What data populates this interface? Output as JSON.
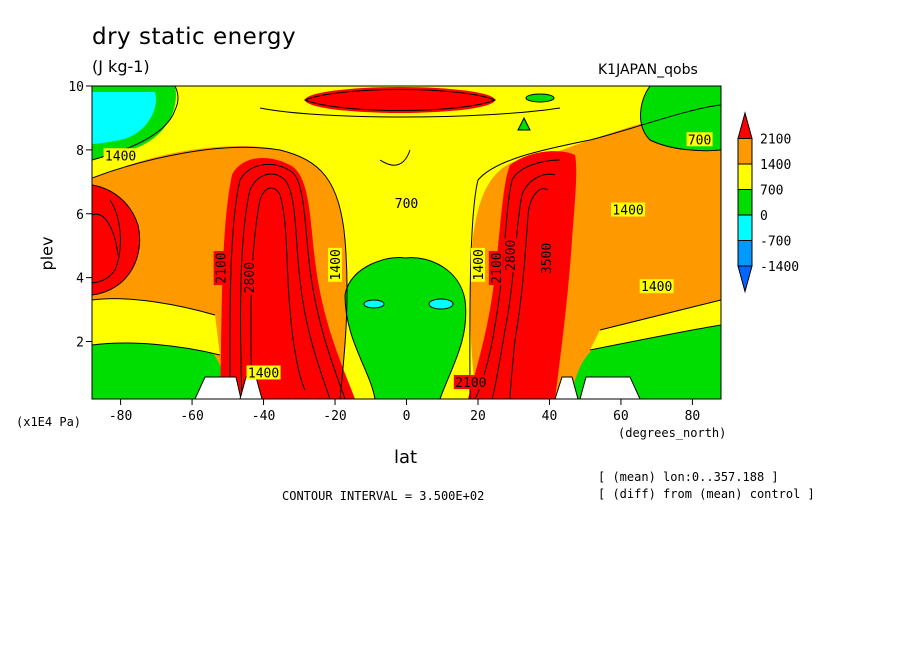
{
  "chart_data": {
    "type": "heatmap",
    "title": "dry static energy",
    "units": "(J kg-1)",
    "experiment": "K1JAPAN_qobs",
    "xlabel": "lat",
    "x_units": "(degrees_north)",
    "ylabel": "plev",
    "y_units": "(x1E4 Pa)",
    "x_ticks": [
      "-80",
      "-60",
      "-40",
      "-20",
      "0",
      "20",
      "40",
      "60",
      "80"
    ],
    "y_ticks": [
      "2",
      "4",
      "6",
      "8",
      "10"
    ],
    "xlim": [
      -88,
      88
    ],
    "ylim": [
      10,
      0.2
    ],
    "contour_interval_text": "CONTOUR INTERVAL = 3.500E+02",
    "notes": [
      "[ (mean) lon:0..357.188 ]",
      "[ (diff) from (mean) control ]"
    ],
    "colorbar": {
      "levels": [
        "2100",
        "1400",
        "700",
        "0",
        "-700",
        "-1400"
      ],
      "colors": [
        "#ff0000",
        "#ff9900",
        "#ffff00",
        "#00dd00",
        "#00ffff",
        "#0099ff",
        "#0066ff"
      ]
    },
    "contour_labels": [
      {
        "text": "1400",
        "lat": -40,
        "plev": 1.0
      },
      {
        "text": "2100",
        "lat": 18,
        "plev": 0.7
      },
      {
        "text": "2100",
        "lat": -52,
        "plev": 4.3
      },
      {
        "text": "2800",
        "lat": -44,
        "plev": 4.0
      },
      {
        "text": "1400",
        "lat": -20,
        "plev": 4.4
      },
      {
        "text": "1400",
        "lat": 20,
        "plev": 4.4
      },
      {
        "text": "2100",
        "lat": 25,
        "plev": 4.3
      },
      {
        "text": "2800",
        "lat": 29,
        "plev": 4.7
      },
      {
        "text": "3500",
        "lat": 39,
        "plev": 4.6
      },
      {
        "text": "1400",
        "lat": 70,
        "plev": 3.7
      },
      {
        "text": "700",
        "lat": 0,
        "plev": 6.3
      },
      {
        "text": "1400",
        "lat": 62,
        "plev": 6.1
      },
      {
        "text": "1400",
        "lat": -80,
        "plev": 7.8
      },
      {
        "text": "700",
        "lat": 82,
        "plev": 8.3
      }
    ]
  }
}
